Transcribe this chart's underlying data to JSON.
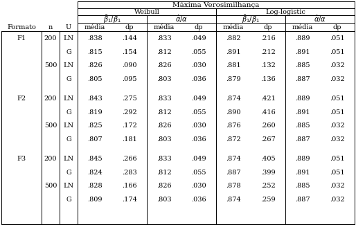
{
  "title": "Máxima Verosimilhança",
  "weibull_label": "Weibull",
  "loglogistic_label": "Log-logistic",
  "row_headers": [
    "Formato",
    "n",
    "U"
  ],
  "sub_headers": [
    "média",
    "dp",
    "média",
    "dp",
    "média",
    "dp",
    "média",
    "dp"
  ],
  "rows": [
    [
      "F1",
      "200",
      "LN",
      ".838",
      ".144",
      ".833",
      ".049",
      ".882",
      ".216",
      ".889",
      ".051"
    ],
    [
      "",
      "",
      "G",
      ".815",
      ".154",
      ".812",
      ".055",
      ".891",
      ".212",
      ".891",
      ".051"
    ],
    [
      "",
      "500",
      "LN",
      ".826",
      ".090",
      ".826",
      ".030",
      ".881",
      ".132",
      ".885",
      ".032"
    ],
    [
      "",
      "",
      "G",
      ".805",
      ".095",
      ".803",
      ".036",
      ".879",
      ".136",
      ".887",
      ".032"
    ],
    [
      "F2",
      "200",
      "LN",
      ".843",
      ".275",
      ".833",
      ".049",
      ".874",
      ".421",
      ".889",
      ".051"
    ],
    [
      "",
      "",
      "G",
      ".819",
      ".292",
      ".812",
      ".055",
      ".890",
      ".416",
      ".891",
      ".051"
    ],
    [
      "",
      "500",
      "LN",
      ".825",
      ".172",
      ".826",
      ".030",
      ".876",
      ".260",
      ".885",
      ".032"
    ],
    [
      "",
      "",
      "G",
      ".807",
      ".181",
      ".803",
      ".036",
      ".872",
      ".267",
      ".887",
      ".032"
    ],
    [
      "F3",
      "200",
      "LN",
      ".845",
      ".266",
      ".833",
      ".049",
      ".874",
      ".405",
      ".889",
      ".051"
    ],
    [
      "",
      "",
      "G",
      ".824",
      ".283",
      ".812",
      ".055",
      ".887",
      ".399",
      ".891",
      ".051"
    ],
    [
      "",
      "500",
      "LN",
      ".828",
      ".166",
      ".826",
      ".030",
      ".878",
      ".252",
      ".885",
      ".032"
    ],
    [
      "",
      "",
      "G",
      ".809",
      ".174",
      ".803",
      ".036",
      ".874",
      ".259",
      ".887",
      ".032"
    ]
  ],
  "background": "#ffffff",
  "fontsize": 7.0,
  "lw": 0.7
}
